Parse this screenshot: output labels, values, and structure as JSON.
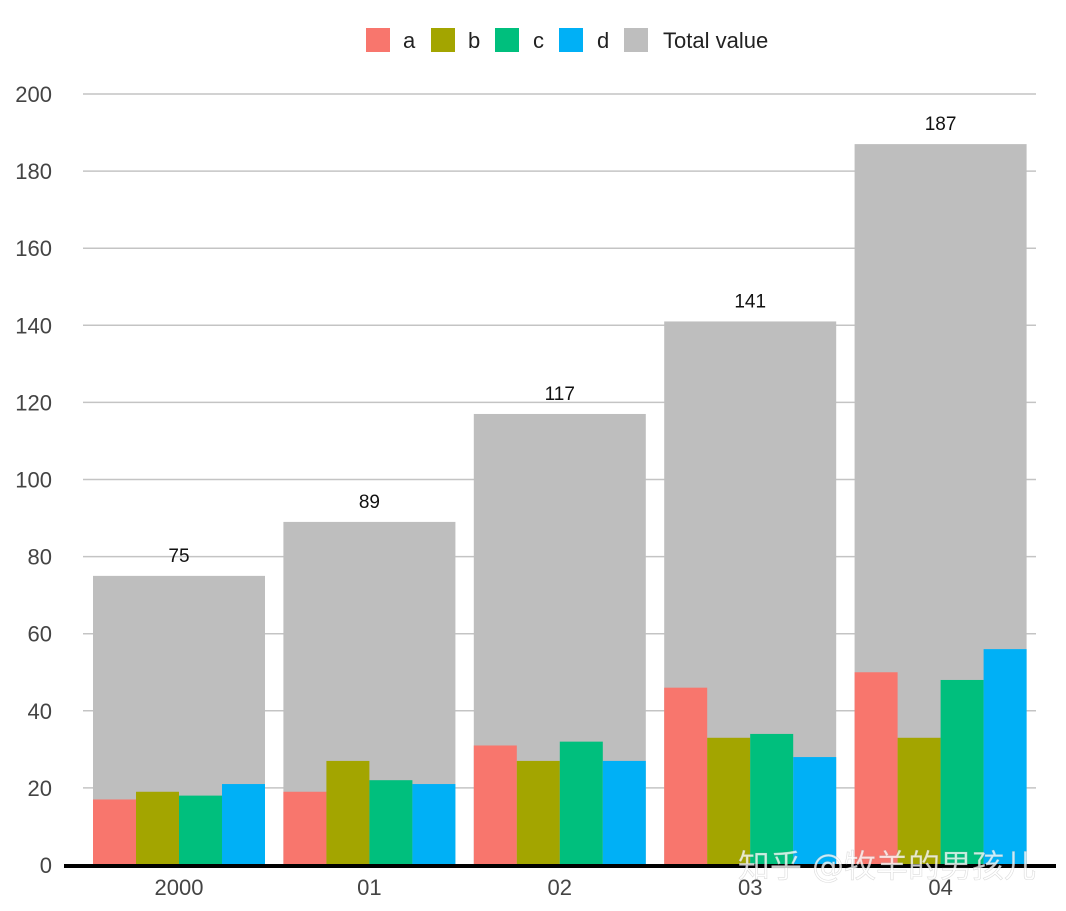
{
  "chart_data": {
    "type": "bar",
    "categories": [
      "2000",
      "01",
      "02",
      "03",
      "04"
    ],
    "series": [
      {
        "name": "a",
        "values": [
          17,
          19,
          31,
          46,
          50
        ],
        "color": "#F8766D"
      },
      {
        "name": "b",
        "values": [
          19,
          27,
          27,
          33,
          33
        ],
        "color": "#A3A500"
      },
      {
        "name": "c",
        "values": [
          18,
          22,
          32,
          34,
          48
        ],
        "color": "#00BF7D"
      },
      {
        "name": "d",
        "values": [
          21,
          21,
          27,
          28,
          56
        ],
        "color": "#00B0F6"
      }
    ],
    "total": {
      "name": "Total value",
      "values": [
        75,
        89,
        117,
        141,
        187
      ],
      "color": "#BEBEBE"
    },
    "data_labels": [
      "75",
      "89",
      "117",
      "141",
      "187"
    ],
    "ylim": [
      0,
      200
    ],
    "yticks": [
      0,
      20,
      40,
      60,
      80,
      100,
      120,
      140,
      160,
      180,
      200
    ],
    "grid": true,
    "legend_position": "top",
    "title": "",
    "xlabel": "",
    "ylabel": ""
  },
  "watermark": "知乎 @牧羊的男孩儿"
}
